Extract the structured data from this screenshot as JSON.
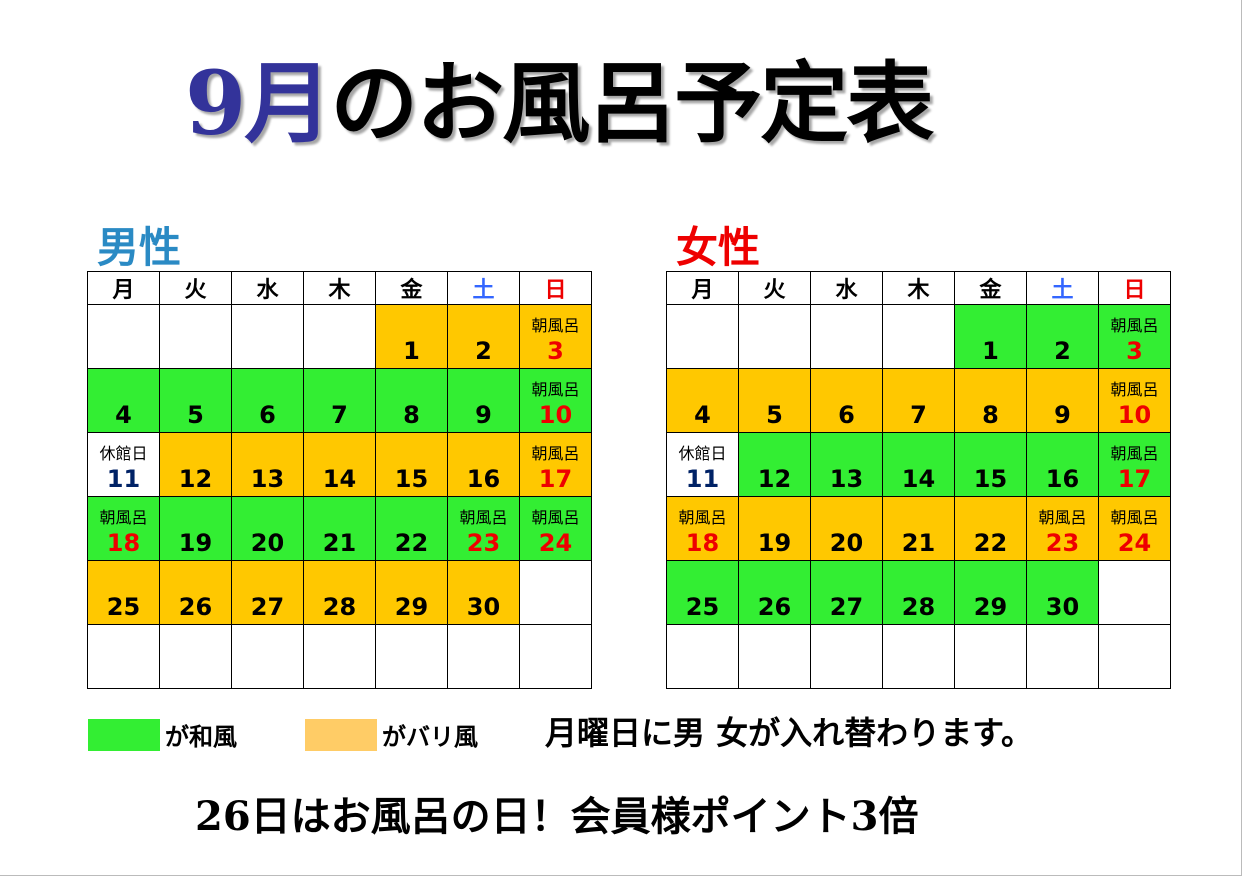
{
  "title": {
    "month": "9月",
    "rest": "のお風呂予定表"
  },
  "colors": {
    "wa": "#33ee33",
    "bali": "#ffc800",
    "legend_bali": "#ffcc66",
    "weekday": "#000000",
    "saturday": "#3366ff",
    "sunday": "#ee0000",
    "closed_day": "#002266",
    "men_label": "#2a8ac4",
    "women_label": "#ee0000"
  },
  "weekdays": [
    "月",
    "火",
    "水",
    "木",
    "金",
    "土",
    "日"
  ],
  "men": {
    "label": "男性",
    "rows": [
      [
        null,
        null,
        null,
        null,
        {
          "day": "1",
          "type": "bali"
        },
        {
          "day": "2",
          "type": "bali"
        },
        {
          "day": "3",
          "type": "bali",
          "note": "朝風呂",
          "red": true
        }
      ],
      [
        {
          "day": "4",
          "type": "wa"
        },
        {
          "day": "5",
          "type": "wa"
        },
        {
          "day": "6",
          "type": "wa"
        },
        {
          "day": "7",
          "type": "wa"
        },
        {
          "day": "8",
          "type": "wa"
        },
        {
          "day": "9",
          "type": "wa"
        },
        {
          "day": "10",
          "type": "wa",
          "note": "朝風呂",
          "red": true
        }
      ],
      [
        {
          "day": "11",
          "type": "none",
          "note": "休館日",
          "closed": true
        },
        {
          "day": "12",
          "type": "bali"
        },
        {
          "day": "13",
          "type": "bali"
        },
        {
          "day": "14",
          "type": "bali"
        },
        {
          "day": "15",
          "type": "bali"
        },
        {
          "day": "16",
          "type": "bali"
        },
        {
          "day": "17",
          "type": "bali",
          "note": "朝風呂",
          "red": true
        }
      ],
      [
        {
          "day": "18",
          "type": "wa",
          "note": "朝風呂",
          "red": true
        },
        {
          "day": "19",
          "type": "wa"
        },
        {
          "day": "20",
          "type": "wa"
        },
        {
          "day": "21",
          "type": "wa"
        },
        {
          "day": "22",
          "type": "wa"
        },
        {
          "day": "23",
          "type": "wa",
          "note": "朝風呂",
          "red": true
        },
        {
          "day": "24",
          "type": "wa",
          "note": "朝風呂",
          "red": true
        }
      ],
      [
        {
          "day": "25",
          "type": "bali"
        },
        {
          "day": "26",
          "type": "bali"
        },
        {
          "day": "27",
          "type": "bali"
        },
        {
          "day": "28",
          "type": "bali"
        },
        {
          "day": "29",
          "type": "bali"
        },
        {
          "day": "30",
          "type": "bali"
        },
        null
      ],
      [
        null,
        null,
        null,
        null,
        null,
        null,
        null
      ]
    ]
  },
  "women": {
    "label": "女性",
    "rows": [
      [
        null,
        null,
        null,
        null,
        {
          "day": "1",
          "type": "wa"
        },
        {
          "day": "2",
          "type": "wa"
        },
        {
          "day": "3",
          "type": "wa",
          "note": "朝風呂",
          "red": true
        }
      ],
      [
        {
          "day": "4",
          "type": "bali"
        },
        {
          "day": "5",
          "type": "bali"
        },
        {
          "day": "6",
          "type": "bali"
        },
        {
          "day": "7",
          "type": "bali"
        },
        {
          "day": "8",
          "type": "bali"
        },
        {
          "day": "9",
          "type": "bali"
        },
        {
          "day": "10",
          "type": "bali",
          "note": "朝風呂",
          "red": true
        }
      ],
      [
        {
          "day": "11",
          "type": "none",
          "note": "休館日",
          "closed": true
        },
        {
          "day": "12",
          "type": "wa"
        },
        {
          "day": "13",
          "type": "wa"
        },
        {
          "day": "14",
          "type": "wa"
        },
        {
          "day": "15",
          "type": "wa"
        },
        {
          "day": "16",
          "type": "wa"
        },
        {
          "day": "17",
          "type": "wa",
          "note": "朝風呂",
          "red": true
        }
      ],
      [
        {
          "day": "18",
          "type": "bali",
          "note": "朝風呂",
          "red": true
        },
        {
          "day": "19",
          "type": "bali"
        },
        {
          "day": "20",
          "type": "bali"
        },
        {
          "day": "21",
          "type": "bali"
        },
        {
          "day": "22",
          "type": "bali"
        },
        {
          "day": "23",
          "type": "bali",
          "note": "朝風呂",
          "red": true
        },
        {
          "day": "24",
          "type": "bali",
          "note": "朝風呂",
          "red": true
        }
      ],
      [
        {
          "day": "25",
          "type": "wa"
        },
        {
          "day": "26",
          "type": "wa"
        },
        {
          "day": "27",
          "type": "wa"
        },
        {
          "day": "28",
          "type": "wa"
        },
        {
          "day": "29",
          "type": "wa"
        },
        {
          "day": "30",
          "type": "wa"
        },
        null
      ],
      [
        null,
        null,
        null,
        null,
        null,
        null,
        null
      ]
    ]
  },
  "legend": {
    "wa_label": "が和風",
    "bali_label": "がバリ風"
  },
  "swap_note": "月曜日に男 女が入れ替わります。",
  "bottom_note": "26日はお風呂の日！会員様ポイント3倍"
}
